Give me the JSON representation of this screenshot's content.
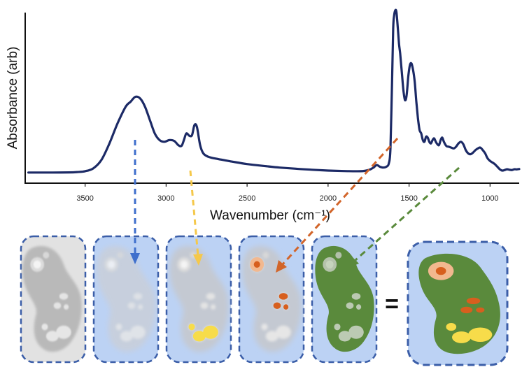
{
  "chart_data": {
    "type": "line",
    "xlabel": "Wavenumber (cm⁻¹)",
    "ylabel": "Absorbance (arb)",
    "x_reversed": true,
    "xlim": [
      3870,
      820
    ],
    "ylim": [
      0,
      1
    ],
    "xticks": [
      {
        "value": 3500,
        "label": "3500"
      },
      {
        "value": 3000,
        "label": "3000"
      },
      {
        "value": 2500,
        "label": "2500"
      },
      {
        "value": 2000,
        "label": "2000"
      },
      {
        "value": 1500,
        "label": "1500"
      },
      {
        "value": 1000,
        "label": "1000"
      }
    ],
    "series": [
      {
        "color": "#1c2a66",
        "x": [
          3850,
          3700,
          3600,
          3550,
          3500,
          3450,
          3400,
          3350,
          3300,
          3250,
          3220,
          3190,
          3160,
          3130,
          3100,
          3070,
          3040,
          3010,
          2980,
          2950,
          2925,
          2905,
          2890,
          2875,
          2855,
          2840,
          2825,
          2810,
          2790,
          2770,
          2740,
          2700,
          2600,
          2500,
          2400,
          2300,
          2200,
          2100,
          2000,
          1900,
          1800,
          1750,
          1720,
          1700,
          1680,
          1660,
          1640,
          1625,
          1615,
          1605,
          1598,
          1592,
          1585,
          1578,
          1570,
          1562,
          1555,
          1545,
          1535,
          1525,
          1515,
          1505,
          1495,
          1485,
          1475,
          1465,
          1455,
          1445,
          1435,
          1425,
          1415,
          1405,
          1395,
          1385,
          1375,
          1365,
          1355,
          1345,
          1335,
          1325,
          1315,
          1305,
          1295,
          1285,
          1270,
          1255,
          1240,
          1225,
          1210,
          1195,
          1180,
          1165,
          1150,
          1135,
          1120,
          1105,
          1090,
          1075,
          1060,
          1045,
          1030,
          1015,
          1000,
          985,
          970,
          955,
          940,
          925,
          910,
          895,
          880,
          865,
          850,
          835,
          820
        ],
        "y": [
          0.005,
          0.005,
          0.006,
          0.008,
          0.013,
          0.03,
          0.08,
          0.18,
          0.3,
          0.4,
          0.43,
          0.46,
          0.45,
          0.4,
          0.32,
          0.24,
          0.2,
          0.19,
          0.2,
          0.195,
          0.17,
          0.165,
          0.2,
          0.24,
          0.225,
          0.23,
          0.29,
          0.28,
          0.17,
          0.12,
          0.1,
          0.09,
          0.072,
          0.056,
          0.045,
          0.035,
          0.028,
          0.022,
          0.017,
          0.014,
          0.013,
          0.02,
          0.035,
          0.05,
          0.04,
          0.035,
          0.04,
          0.06,
          0.15,
          0.55,
          0.87,
          0.95,
          0.98,
          0.97,
          0.88,
          0.78,
          0.72,
          0.61,
          0.5,
          0.44,
          0.47,
          0.58,
          0.65,
          0.66,
          0.62,
          0.55,
          0.43,
          0.33,
          0.26,
          0.24,
          0.2,
          0.19,
          0.22,
          0.215,
          0.19,
          0.18,
          0.2,
          0.21,
          0.19,
          0.175,
          0.17,
          0.2,
          0.215,
          0.19,
          0.165,
          0.16,
          0.155,
          0.15,
          0.16,
          0.18,
          0.19,
          0.175,
          0.14,
          0.12,
          0.115,
          0.125,
          0.14,
          0.15,
          0.155,
          0.14,
          0.12,
          0.09,
          0.075,
          0.065,
          0.055,
          0.04,
          0.025,
          0.017,
          0.02,
          0.025,
          0.022,
          0.02,
          0.025,
          0.024,
          0.026
        ]
      }
    ]
  },
  "diagram": {
    "equals_sign": "=",
    "colors": {
      "panel_blue": "#bcd2f4",
      "panel_gray": "#e2e2e2",
      "panel_border": "#3b5ea8",
      "arrow_blue": "#3f6fcc",
      "arrow_yellow": "#f5c84a",
      "arrow_orange": "#d2652a",
      "arrow_green": "#5a8a3c",
      "region_green": "#5a8a3c",
      "region_yellow": "#f7dc4a",
      "region_orange": "#d75f1e",
      "region_peach": "#f2b88f"
    },
    "arrows": [
      {
        "name": "blue-arrow",
        "color_key": "arrow_blue",
        "target_panel": 2
      },
      {
        "name": "yellow-arrow",
        "color_key": "arrow_yellow",
        "target_panel": 3
      },
      {
        "name": "orange-arrow",
        "color_key": "arrow_orange",
        "target_panel": 4
      },
      {
        "name": "green-arrow",
        "color_key": "arrow_green",
        "target_panel": 5
      }
    ]
  }
}
